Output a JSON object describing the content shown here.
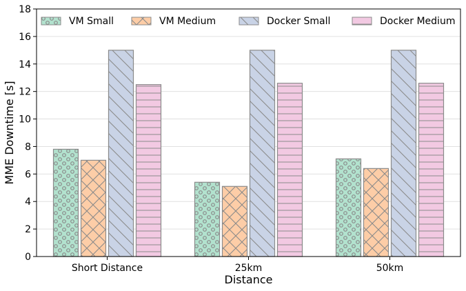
{
  "chart_data": {
    "type": "bar",
    "title": "",
    "xlabel": "Distance",
    "ylabel": "MME Downtime [s]",
    "categories": [
      "Short Distance",
      "25km",
      "50km"
    ],
    "ylim": [
      0,
      18
    ],
    "yticks": [
      0,
      2,
      4,
      6,
      8,
      10,
      12,
      14,
      16,
      18
    ],
    "grid": "horizontal",
    "legend_position": "top",
    "series": [
      {
        "name": "VM Small",
        "values": [
          7.8,
          5.4,
          7.1
        ],
        "color": "#b2e2ce",
        "hatch": "circles"
      },
      {
        "name": "VM Medium",
        "values": [
          7.0,
          5.1,
          6.4
        ],
        "color": "#fdcda7",
        "hatch": "cross"
      },
      {
        "name": "Docker Small",
        "values": [
          15.0,
          15.0,
          15.0
        ],
        "color": "#c9d3e6",
        "hatch": "backslash"
      },
      {
        "name": "Docker Medium",
        "values": [
          12.5,
          12.6,
          12.6
        ],
        "color": "#f2c9e2",
        "hatch": "horizontal"
      }
    ]
  }
}
